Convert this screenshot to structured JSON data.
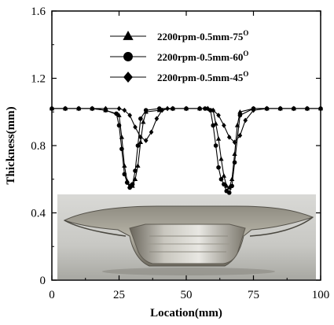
{
  "chart_data": {
    "type": "line",
    "xlabel": "Location(mm)",
    "ylabel": "Thickness(mm)",
    "xlim": [
      0,
      100
    ],
    "ylim": [
      0,
      1.6
    ],
    "xticks": [
      "0",
      "25",
      "50",
      "75",
      "100"
    ],
    "yticks": [
      "0",
      "0.4",
      "0.8",
      "1.2",
      "1.6"
    ],
    "grid": false,
    "legend_position": "top-center",
    "inset_photo": "photo of formed sheet metal part",
    "series": [
      {
        "name": "2200rpm-0.5mm-75",
        "name_superscript": "O",
        "marker": "triangle",
        "x": [
          0,
          5,
          10,
          15,
          20,
          25,
          26,
          27,
          28,
          29,
          30,
          31,
          32,
          33,
          34,
          35,
          40,
          45,
          50,
          55,
          58,
          60,
          61,
          62,
          63,
          64,
          65,
          66,
          67,
          68,
          69,
          70,
          75,
          80,
          85,
          90,
          95,
          100
        ],
        "y": [
          1.02,
          1.02,
          1.02,
          1.02,
          1.01,
          0.98,
          0.85,
          0.68,
          0.59,
          0.56,
          0.56,
          0.6,
          0.68,
          0.82,
          0.94,
          1.0,
          1.01,
          1.02,
          1.02,
          1.02,
          1.02,
          1.01,
          0.93,
          0.84,
          0.72,
          0.62,
          0.56,
          0.55,
          0.6,
          0.75,
          0.92,
          1.0,
          1.02,
          1.02,
          1.02,
          1.02,
          1.02,
          1.02
        ]
      },
      {
        "name": "2200rpm-0.5mm-60",
        "name_superscript": "O",
        "marker": "circle",
        "x": [
          0,
          5,
          10,
          15,
          20,
          24,
          25,
          26,
          27,
          28,
          29,
          30,
          31,
          32,
          33,
          35,
          40,
          45,
          50,
          55,
          57,
          59,
          60,
          61,
          62,
          63,
          64,
          65,
          66,
          67,
          68,
          70,
          75,
          80,
          85,
          90,
          95,
          100
        ],
        "y": [
          1.02,
          1.02,
          1.02,
          1.02,
          1.01,
          0.99,
          0.92,
          0.78,
          0.63,
          0.58,
          0.55,
          0.57,
          0.65,
          0.8,
          0.96,
          1.01,
          1.02,
          1.02,
          1.02,
          1.02,
          1.02,
          1.01,
          0.92,
          0.8,
          0.67,
          0.6,
          0.57,
          0.53,
          0.52,
          0.56,
          0.7,
          0.98,
          1.02,
          1.02,
          1.02,
          1.02,
          1.02,
          1.02
        ]
      },
      {
        "name": "2200rpm-0.5mm-45",
        "name_superscript": "O",
        "marker": "diamond",
        "x": [
          0,
          5,
          10,
          15,
          20,
          25,
          27,
          29,
          31,
          33,
          35,
          37,
          39,
          41,
          43,
          45,
          50,
          55,
          58,
          60,
          62,
          64,
          66,
          68,
          70,
          72,
          75,
          80,
          85,
          90,
          95,
          100
        ],
        "y": [
          1.02,
          1.02,
          1.02,
          1.02,
          1.02,
          1.02,
          1.01,
          0.98,
          0.91,
          0.85,
          0.83,
          0.88,
          0.96,
          1.01,
          1.02,
          1.02,
          1.02,
          1.02,
          1.02,
          1.01,
          0.98,
          0.92,
          0.85,
          0.82,
          0.86,
          0.95,
          1.01,
          1.02,
          1.02,
          1.02,
          1.02,
          1.02
        ]
      }
    ]
  }
}
